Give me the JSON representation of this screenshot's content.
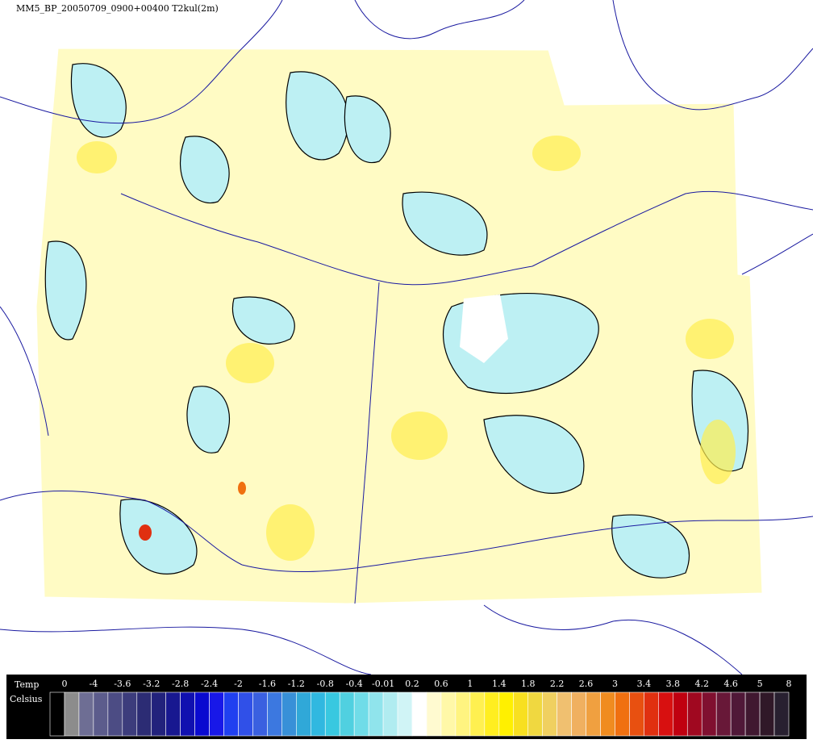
{
  "title": "MM5_BP_20050709_0900+00400 T2kul(2m)",
  "legend": {
    "variable": "Temp",
    "unit": "Celsius",
    "labels": [
      "0",
      "-4",
      "-3.6",
      "-3.2",
      "-2.8",
      "-2.4",
      "-2",
      "-1.6",
      "-1.2",
      "-0.8",
      "-0.4",
      "-0.01",
      "0.2",
      "0.6",
      "1",
      "1.4",
      "1.8",
      "2.2",
      "2.6",
      "3",
      "3.4",
      "3.8",
      "4.2",
      "4.6",
      "5",
      "8"
    ],
    "colors": [
      "#000000",
      "#8c8c8c",
      "#6e6e94",
      "#5c5c8c",
      "#4c4c84",
      "#3c3c7c",
      "#2c2c74",
      "#22227c",
      "#181890",
      "#1010b0",
      "#0a0ad0",
      "#1818e8",
      "#2040f0",
      "#3050e8",
      "#3a60e0",
      "#3c78e0",
      "#3890d8",
      "#30a8d8",
      "#30b8e0",
      "#38c8e0",
      "#50d0e0",
      "#70dce8",
      "#90e4ec",
      "#b0ecf0",
      "#d0f4f6",
      "#ffffff",
      "#fffad0",
      "#fff8a8",
      "#fff480",
      "#fff050",
      "#ffee20",
      "#fff000",
      "#f8e020",
      "#f0d840",
      "#f0d060",
      "#f0c070",
      "#f0b060",
      "#f0a040",
      "#f08c20",
      "#f07010",
      "#e85010",
      "#e03010",
      "#d81010",
      "#c00010",
      "#a00820",
      "#801030",
      "#681838",
      "#501838",
      "#401830",
      "#301828",
      "#282030"
    ]
  }
}
